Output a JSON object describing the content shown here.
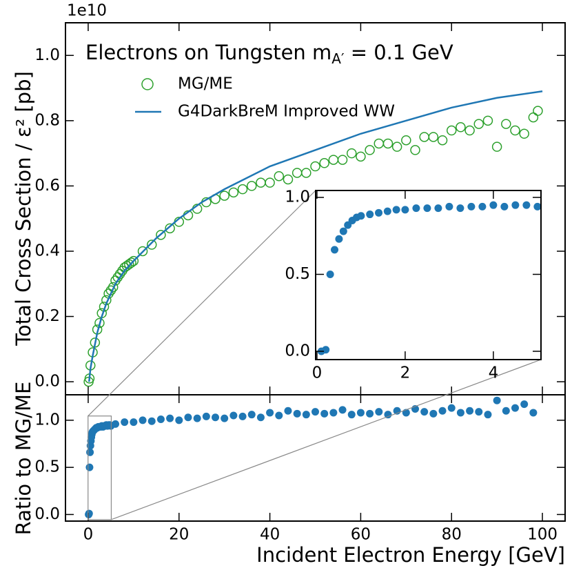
{
  "chart_data": [
    {
      "type": "scatter",
      "title": {
        "text": "Electrons on Tungsten m",
        "sub": "A′",
        "rest": " = 0.1 GeV"
      },
      "ylabel": "Total Cross Section / ε² [pb]",
      "offset_label": "1e10",
      "ylim": [
        -0.04,
        1.1
      ],
      "yticks": [
        {
          "value": 0,
          "label": "0.0"
        },
        0.2,
        0.4,
        0.6,
        0.8,
        {
          "value": 1,
          "label": "1.0"
        }
      ],
      "series": [
        {
          "name": "MG/ME",
          "type": "scatter",
          "marker": "open",
          "color": "#2ca02c",
          "x": [
            0.1,
            0.3,
            0.5,
            1,
            1.5,
            2,
            2.5,
            3,
            3.5,
            4,
            4.5,
            5,
            5.5,
            6,
            6.5,
            7,
            7.5,
            8,
            8.5,
            9,
            9.5,
            10,
            12,
            14,
            16,
            18,
            20,
            22,
            24,
            26,
            28,
            30,
            32,
            34,
            36,
            38,
            40,
            42,
            44,
            46,
            48,
            50,
            52,
            54,
            56,
            58,
            60,
            62,
            64,
            66,
            68,
            70,
            72,
            74,
            76,
            78,
            80,
            82,
            84,
            86,
            88,
            90,
            92,
            94,
            96,
            98,
            99
          ],
          "values": [
            0.0,
            0.01,
            0.05,
            0.09,
            0.12,
            0.16,
            0.18,
            0.21,
            0.23,
            0.25,
            0.27,
            0.28,
            0.29,
            0.31,
            0.32,
            0.33,
            0.34,
            0.35,
            0.355,
            0.36,
            0.365,
            0.37,
            0.4,
            0.42,
            0.45,
            0.47,
            0.49,
            0.51,
            0.53,
            0.55,
            0.56,
            0.57,
            0.58,
            0.59,
            0.6,
            0.61,
            0.61,
            0.63,
            0.62,
            0.64,
            0.64,
            0.66,
            0.67,
            0.68,
            0.68,
            0.7,
            0.69,
            0.71,
            0.73,
            0.73,
            0.72,
            0.74,
            0.71,
            0.75,
            0.75,
            0.74,
            0.77,
            0.78,
            0.77,
            0.79,
            0.8,
            0.72,
            0.79,
            0.77,
            0.76,
            0.81,
            0.83
          ]
        },
        {
          "name": "G4DarkBreM Improved WW",
          "type": "line",
          "color": "#1f77b4",
          "x": [
            0.2,
            0.5,
            1,
            2,
            3,
            4,
            5,
            6,
            8,
            10,
            15,
            20,
            25,
            30,
            40,
            50,
            60,
            70,
            80,
            90,
            100
          ],
          "values": [
            0.0,
            0.04,
            0.08,
            0.15,
            0.2,
            0.24,
            0.27,
            0.3,
            0.34,
            0.37,
            0.44,
            0.5,
            0.55,
            0.59,
            0.66,
            0.71,
            0.76,
            0.8,
            0.84,
            0.87,
            0.89
          ]
        }
      ]
    },
    {
      "type": "scatter",
      "ylabel": "Ratio to MG/ME",
      "xlabel": "Incident Electron Energy [GeV]",
      "xlim": [
        -5,
        105
      ],
      "xticks": [
        0,
        20,
        40,
        60,
        80,
        100
      ],
      "ylim": [
        -0.07,
        1.27
      ],
      "yticks": [
        {
          "value": 0,
          "label": "0.0"
        },
        0.5,
        {
          "value": 1,
          "label": "1.0"
        }
      ],
      "series": [
        {
          "color": "#1f77b4",
          "x": [
            0.1,
            0.2,
            0.3,
            0.4,
            0.5,
            0.6,
            0.7,
            0.8,
            0.9,
            1.0,
            1.2,
            1.4,
            1.6,
            1.8,
            2.0,
            2.25,
            2.5,
            2.75,
            3.0,
            3.25,
            3.5,
            3.75,
            4.0,
            4.25,
            4.5,
            4.75,
            5,
            6,
            8,
            10,
            12,
            14,
            16,
            18,
            20,
            22,
            24,
            26,
            28,
            30,
            32,
            34,
            36,
            38,
            40,
            42,
            44,
            46,
            48,
            50,
            52,
            54,
            56,
            58,
            60,
            62,
            64,
            66,
            68,
            70,
            72,
            74,
            76,
            78,
            80,
            82,
            84,
            86,
            88,
            90,
            92,
            94,
            96,
            98
          ],
          "values": [
            0.0,
            0.01,
            0.5,
            0.66,
            0.73,
            0.78,
            0.82,
            0.85,
            0.87,
            0.88,
            0.89,
            0.9,
            0.91,
            0.92,
            0.92,
            0.93,
            0.93,
            0.93,
            0.94,
            0.93,
            0.94,
            0.94,
            0.95,
            0.94,
            0.95,
            0.95,
            0.94,
            0.96,
            0.98,
            0.98,
            1.0,
            0.99,
            1.01,
            1.02,
            1.0,
            1.03,
            1.02,
            1.04,
            1.03,
            1.02,
            1.05,
            1.04,
            1.06,
            1.03,
            1.08,
            1.05,
            1.1,
            1.07,
            1.06,
            1.09,
            1.07,
            1.08,
            1.11,
            1.06,
            1.08,
            1.07,
            1.09,
            1.06,
            1.1,
            1.08,
            1.12,
            1.09,
            1.07,
            1.1,
            1.13,
            1.08,
            1.1,
            1.09,
            1.06,
            1.21,
            1.1,
            1.13,
            1.17,
            1.08
          ]
        }
      ]
    },
    {
      "type": "inset",
      "xlim": [
        -0.03,
        5.08
      ],
      "xticks": [
        0,
        2,
        4
      ],
      "ylim": [
        -0.054,
        1.045
      ],
      "yticks": [
        {
          "value": 0,
          "label": "0.0"
        },
        0.5,
        {
          "value": 1,
          "label": "1.0"
        }
      ]
    }
  ]
}
